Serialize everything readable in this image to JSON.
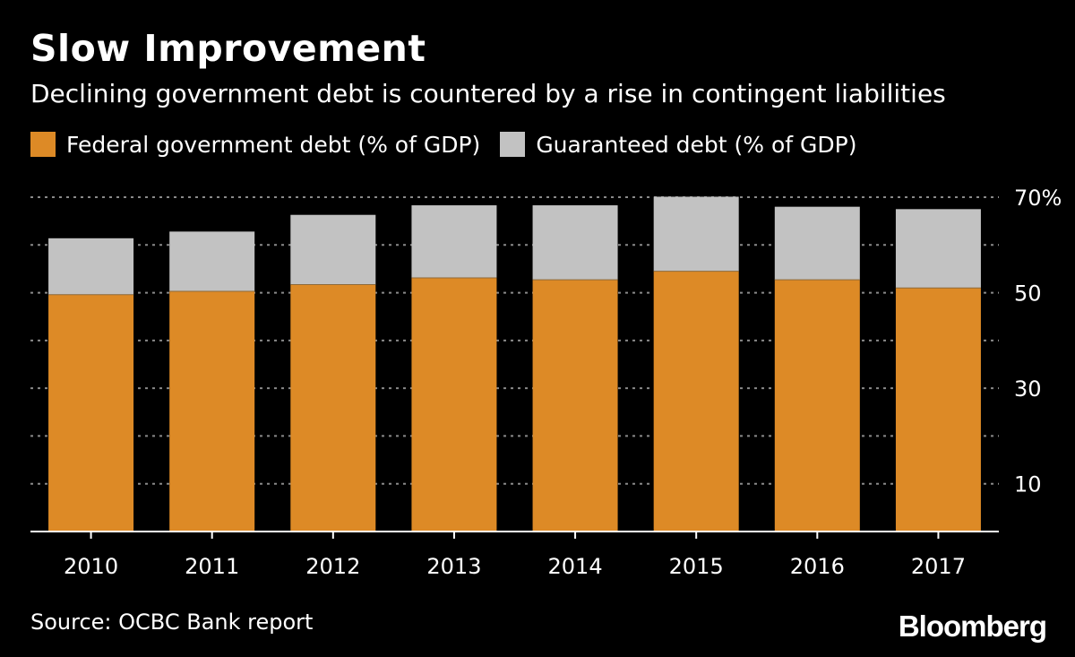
{
  "title": "Slow Improvement",
  "subtitle": "Declining government debt is countered by a rise in contingent liabilities",
  "source": "Source: OCBC Bank report",
  "brand": "Bloomberg",
  "colors": {
    "background": "#000000",
    "federal": "#dd8a26",
    "guaranteed": "#c2c2c2",
    "grid": "#8a8a8a",
    "text": "#ffffff"
  },
  "chart_data": {
    "type": "bar",
    "stacked": true,
    "categories": [
      "2010",
      "2011",
      "2012",
      "2013",
      "2014",
      "2015",
      "2016",
      "2017"
    ],
    "series": [
      {
        "name": "Federal government debt (% of GDP)",
        "color": "#dd8a26",
        "values": [
          49.6,
          50.3,
          51.7,
          53.1,
          52.7,
          54.5,
          52.7,
          51.0
        ]
      },
      {
        "name": "Guaranteed debt (% of GDP)",
        "color": "#c2c2c2",
        "values": [
          11.8,
          12.5,
          14.6,
          15.2,
          15.6,
          15.6,
          15.3,
          16.5
        ]
      }
    ],
    "y_ticks": [
      10,
      30,
      50,
      70
    ],
    "y_tick_labels": [
      "10",
      "30",
      "50",
      "70%"
    ],
    "ylim": [
      0,
      70
    ],
    "gridlines": [
      10,
      20,
      30,
      40,
      50,
      60,
      70
    ],
    "grid": true,
    "y_axis_side": "right",
    "legend_position": "top-left"
  }
}
